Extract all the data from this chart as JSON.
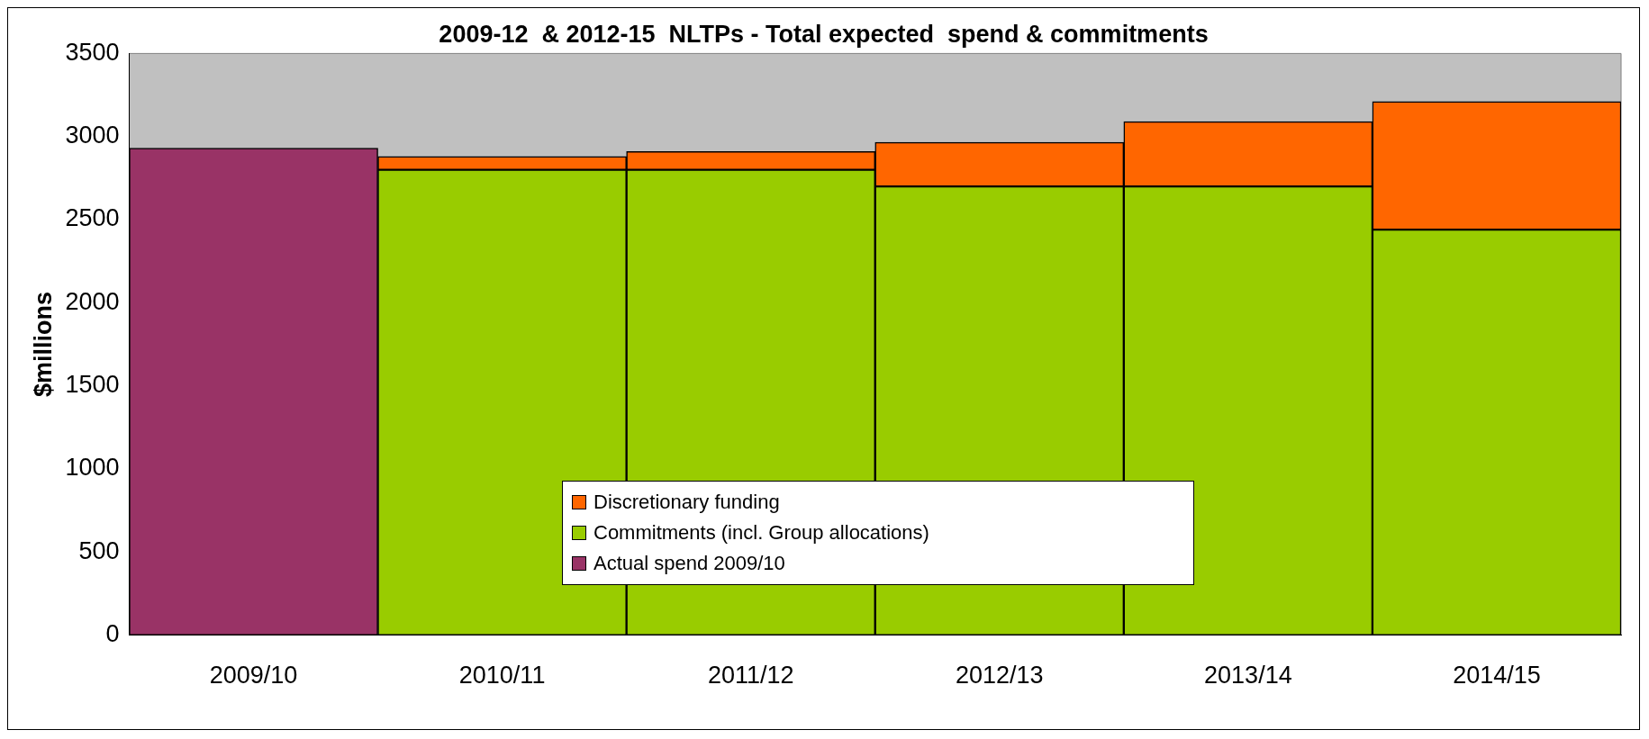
{
  "chart_data": {
    "type": "bar",
    "title": "2009-12  & 2012-15  NLTPs - Total expected  spend & commitments",
    "ylabel": "$millions",
    "categories": [
      "2009/10",
      "2010/11",
      "2011/12",
      "2012/13",
      "2013/14",
      "2014/15"
    ],
    "stacked": true,
    "ylim": [
      0,
      3500
    ],
    "yticks": [
      0,
      500,
      1000,
      1500,
      2000,
      2500,
      3000,
      3500
    ],
    "grid": false,
    "legend": "bottom",
    "series": [
      {
        "name": "Actual spend 2009/10",
        "color": "#993366",
        "values": [
          2930,
          null,
          null,
          null,
          null,
          null
        ]
      },
      {
        "name": "Commitments (incl. Group allocations)",
        "color": "#99cc00",
        "values": [
          null,
          2800,
          2800,
          2700,
          2700,
          2440
        ]
      },
      {
        "name": "Discretionary funding",
        "color": "#ff6600",
        "values": [
          null,
          80,
          110,
          265,
          390,
          770
        ]
      }
    ]
  }
}
